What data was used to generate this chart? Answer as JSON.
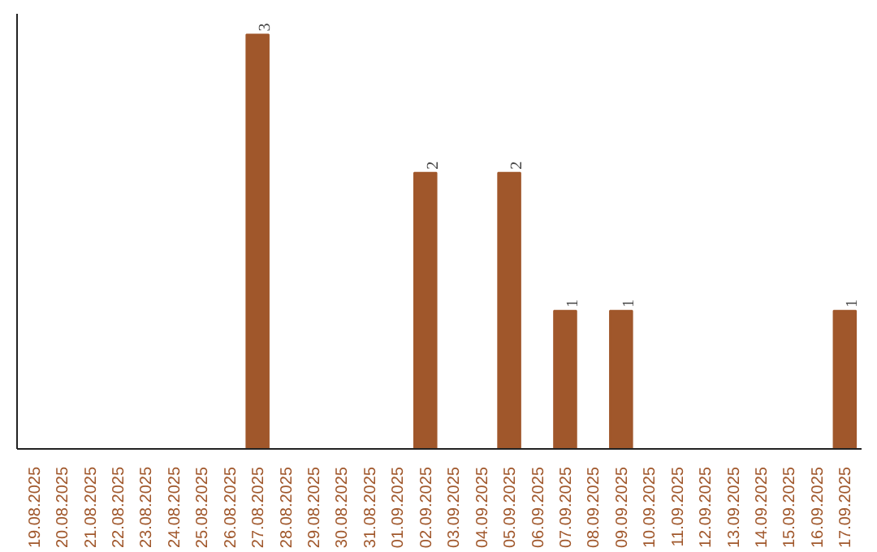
{
  "chart_data": {
    "type": "bar",
    "categories": [
      "19.08.2025",
      "20.08.2025",
      "21.08.2025",
      "22.08.2025",
      "23.08.2025",
      "24.08.2025",
      "25.08.2025",
      "26.08.2025",
      "27.08.2025",
      "28.08.2025",
      "29.08.2025",
      "30.08.2025",
      "31.08.2025",
      "01.09.2025",
      "02.09.2025",
      "03.09.2025",
      "04.09.2025",
      "05.09.2025",
      "06.09.2025",
      "07.09.2025",
      "08.09.2025",
      "09.09.2025",
      "10.09.2025",
      "11.09.2025",
      "12.09.2025",
      "13.09.2025",
      "14.09.2025",
      "15.09.2025",
      "16.09.2025",
      "17.09.2025"
    ],
    "values": [
      0,
      0,
      0,
      0,
      0,
      0,
      0,
      0,
      3,
      0,
      0,
      0,
      0,
      0,
      2,
      0,
      0,
      2,
      0,
      1,
      0,
      1,
      0,
      0,
      0,
      0,
      0,
      0,
      0,
      1
    ],
    "color": "#a0572b",
    "value_labels": [
      null,
      null,
      null,
      null,
      null,
      null,
      null,
      null,
      "3",
      null,
      null,
      null,
      null,
      null,
      "2",
      null,
      null,
      "2",
      null,
      "1",
      null,
      "1",
      null,
      null,
      null,
      null,
      null,
      null,
      null,
      "1"
    ],
    "tick_labels": "x",
    "grid": false
  }
}
